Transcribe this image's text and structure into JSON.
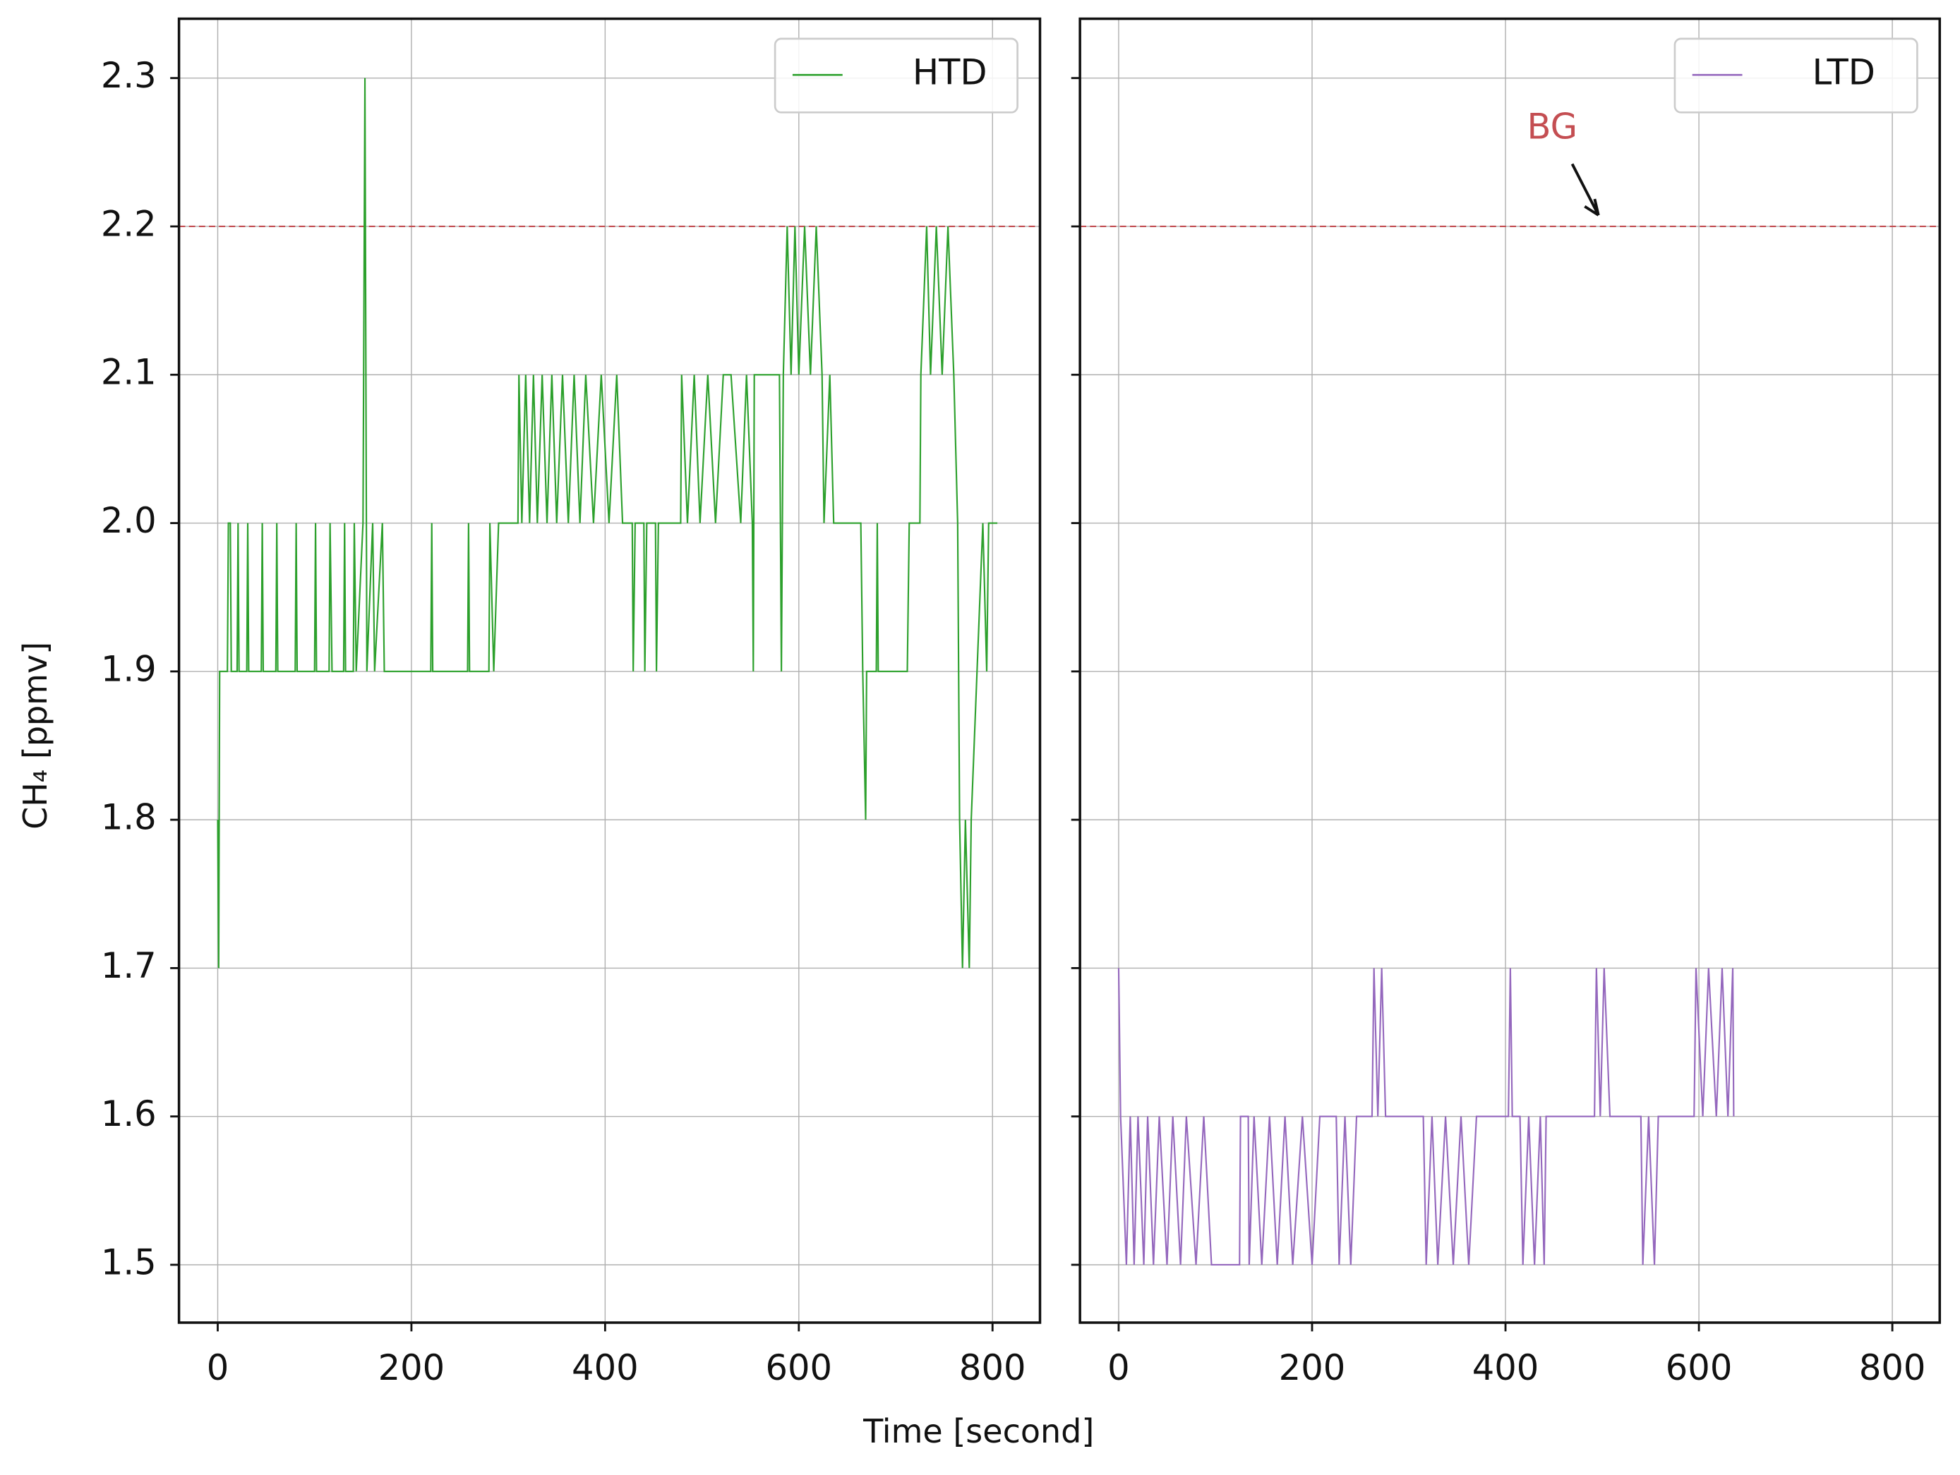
{
  "chart_data": [
    {
      "type": "line",
      "ylabel": "CH₄ [ppmv]",
      "xlabel": "Time [second]",
      "xlim": [
        -40,
        849
      ],
      "xticks": [
        0,
        200,
        400,
        600,
        800
      ],
      "ylim": [
        1.461,
        2.34
      ],
      "yticks": [
        1.5,
        1.6,
        1.7,
        1.8,
        1.9,
        {
          "value": 2,
          "label": "2.0"
        },
        2.1,
        2.2,
        2.3
      ],
      "grid": true,
      "legend": "upper right",
      "hline": {
        "value": 2.2,
        "color": "#c44e52"
      },
      "x": [
        0,
        1,
        2,
        10,
        11,
        13,
        14,
        20,
        21,
        22,
        30,
        31,
        32,
        45,
        46,
        47,
        60,
        61,
        62,
        80,
        81,
        82,
        100,
        101,
        102,
        115,
        116,
        118,
        130,
        131,
        132,
        140,
        141,
        143,
        150,
        152,
        154,
        160,
        162,
        170,
        172,
        220,
        221,
        222,
        258,
        259,
        260,
        280,
        281,
        285,
        290,
        310,
        311,
        314,
        318,
        322,
        326,
        330,
        335,
        340,
        345,
        350,
        356,
        362,
        368,
        374,
        380,
        388,
        396,
        404,
        412,
        418,
        428,
        429,
        431,
        440,
        441,
        443,
        452,
        453,
        455,
        478,
        479,
        485,
        492,
        498,
        506,
        514,
        522,
        530,
        540,
        546,
        552,
        553,
        554,
        580,
        582,
        584,
        588,
        592,
        596,
        600,
        606,
        612,
        618,
        624,
        626,
        632,
        636,
        664,
        666,
        669,
        670,
        680,
        681,
        682,
        712,
        714,
        725,
        726,
        732,
        736,
        742,
        748,
        754,
        760,
        764,
        766,
        769,
        772,
        776,
        778,
        784,
        790,
        794,
        796,
        805
      ],
      "series": [
        {
          "name": "HTD",
          "color": "#2ca02c",
          "values": [
            1.8,
            1.7,
            1.9,
            1.9,
            2.0,
            2.0,
            1.9,
            1.9,
            2.0,
            1.9,
            1.9,
            2.0,
            1.9,
            1.9,
            2.0,
            1.9,
            1.9,
            2.0,
            1.9,
            1.9,
            2.0,
            1.9,
            1.9,
            2.0,
            1.9,
            1.9,
            2.0,
            1.9,
            1.9,
            2.0,
            1.9,
            1.9,
            2.0,
            1.9,
            2.0,
            2.3,
            1.9,
            2.0,
            1.9,
            2.0,
            1.9,
            1.9,
            2.0,
            1.9,
            1.9,
            2.0,
            1.9,
            1.9,
            2.0,
            1.9,
            2.0,
            2.0,
            2.1,
            2.0,
            2.1,
            2.0,
            2.1,
            2.0,
            2.1,
            2.0,
            2.1,
            2.0,
            2.1,
            2.0,
            2.1,
            2.0,
            2.1,
            2.0,
            2.1,
            2.0,
            2.1,
            2.0,
            2.0,
            1.9,
            2.0,
            2.0,
            1.9,
            2.0,
            2.0,
            1.9,
            2.0,
            2.0,
            2.1,
            2.0,
            2.1,
            2.0,
            2.1,
            2.0,
            2.1,
            2.1,
            2.0,
            2.1,
            2.0,
            1.9,
            2.1,
            2.1,
            1.9,
            2.1,
            2.2,
            2.1,
            2.2,
            2.1,
            2.2,
            2.1,
            2.2,
            2.1,
            2.0,
            2.1,
            2.0,
            2.0,
            1.9,
            1.8,
            1.9,
            1.9,
            2.0,
            1.9,
            1.9,
            2.0,
            2.0,
            2.1,
            2.2,
            2.1,
            2.2,
            2.1,
            2.2,
            2.1,
            2.0,
            1.8,
            1.7,
            1.8,
            1.7,
            1.8,
            1.9,
            2.0,
            1.9,
            2.0,
            2.0
          ]
        }
      ]
    },
    {
      "type": "line",
      "sharey": true,
      "xlim": [
        -40,
        849
      ],
      "xticks": [
        0,
        200,
        400,
        600,
        800
      ],
      "grid": true,
      "legend": "upper right",
      "hline": {
        "value": 2.2,
        "color": "#c44e52"
      },
      "annotation": {
        "text": "BG",
        "xy": [
          500,
          2.2
        ]
      },
      "x": [
        0,
        2,
        8,
        12,
        16,
        20,
        26,
        30,
        36,
        42,
        50,
        56,
        64,
        70,
        80,
        88,
        96,
        110,
        125,
        126,
        134,
        135,
        140,
        148,
        156,
        164,
        172,
        180,
        190,
        200,
        208,
        225,
        228,
        234,
        240,
        246,
        262,
        264,
        268,
        272,
        276,
        315,
        318,
        324,
        330,
        338,
        346,
        354,
        362,
        370,
        403,
        405,
        407,
        415,
        418,
        424,
        430,
        436,
        440,
        442,
        492,
        494,
        498,
        502,
        508,
        540,
        542,
        548,
        554,
        558,
        595,
        597,
        604,
        610,
        618,
        624,
        630,
        635,
        636
      ],
      "series": [
        {
          "name": "LTD",
          "color": "#9467bd",
          "values": [
            1.7,
            1.6,
            1.5,
            1.6,
            1.5,
            1.6,
            1.5,
            1.6,
            1.5,
            1.6,
            1.5,
            1.6,
            1.5,
            1.6,
            1.5,
            1.6,
            1.5,
            1.5,
            1.5,
            1.6,
            1.6,
            1.5,
            1.6,
            1.5,
            1.6,
            1.5,
            1.6,
            1.5,
            1.6,
            1.5,
            1.6,
            1.6,
            1.5,
            1.6,
            1.5,
            1.6,
            1.6,
            1.7,
            1.6,
            1.7,
            1.6,
            1.6,
            1.5,
            1.6,
            1.5,
            1.6,
            1.5,
            1.6,
            1.5,
            1.6,
            1.6,
            1.7,
            1.6,
            1.6,
            1.5,
            1.6,
            1.5,
            1.6,
            1.5,
            1.6,
            1.6,
            1.7,
            1.6,
            1.7,
            1.6,
            1.6,
            1.5,
            1.6,
            1.5,
            1.6,
            1.6,
            1.7,
            1.6,
            1.7,
            1.6,
            1.7,
            1.6,
            1.7,
            1.6
          ]
        }
      ]
    }
  ]
}
